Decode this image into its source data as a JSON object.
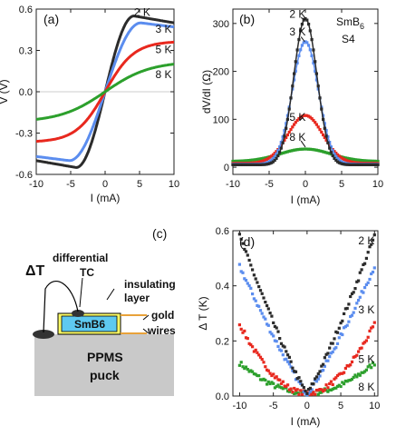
{
  "chart_data": [
    {
      "id": "a",
      "type": "line",
      "panel_label": "(a)",
      "xlabel": "I (mA)",
      "ylabel": "V (V)",
      "xlim": [
        -10,
        10
      ],
      "ylim": [
        -0.6,
        0.6
      ],
      "xticks": [
        -10,
        -5,
        0,
        5,
        10
      ],
      "yticks": [
        0.6,
        0.3,
        0.0,
        -0.3,
        -0.6
      ],
      "ytick_labels": [
        "0.6",
        "0.3",
        "0.0",
        "-0.3",
        "-0.6"
      ],
      "series": [
        {
          "name": "2 K",
          "color": "#2b2b2b",
          "peak": 0.55,
          "peak_at": 4.2,
          "end": 0.5
        },
        {
          "name": "3 K",
          "color": "#5b8def",
          "peak": 0.5,
          "peak_at": 5.2,
          "end": 0.47
        },
        {
          "name": "5 K",
          "color": "#e8281e",
          "peak": 0.36,
          "peak_at": 10,
          "end": 0.36
        },
        {
          "name": "8 K",
          "color": "#2ca02c",
          "peak": 0.2,
          "peak_at": 10,
          "end": 0.2
        }
      ],
      "annotations": [
        {
          "text": "2 K",
          "x": 4.2,
          "y": 0.55
        },
        {
          "text": "3 K",
          "x": 7.3,
          "y": 0.43
        },
        {
          "text": "5 K",
          "x": 7.3,
          "y": 0.28
        },
        {
          "text": "8 K",
          "x": 7.3,
          "y": 0.1
        }
      ]
    },
    {
      "id": "b",
      "type": "scatter",
      "panel_label": "(b)",
      "xlabel": "I (mA)",
      "ylabel": "dV/dI (Ω)",
      "xlim": [
        -10,
        10
      ],
      "ylim": [
        -15,
        330
      ],
      "xticks": [
        -10,
        -5,
        0,
        5,
        10
      ],
      "yticks": [
        0,
        100,
        200,
        300
      ],
      "sample_label": "SmB",
      "sample_sub": "6",
      "sample_id": "S4",
      "series": [
        {
          "name": "2 K",
          "color": "#2b2b2b",
          "peak": 310,
          "width": 1.6,
          "base": 5
        },
        {
          "name": "3 K",
          "color": "#5b8def",
          "peak": 262,
          "width": 1.8,
          "base": 6
        },
        {
          "name": "5 K",
          "color": "#e8281e",
          "peak": 108,
          "width": 2.4,
          "base": 8
        },
        {
          "name": "8 K",
          "color": "#2ca02c",
          "peak": 38,
          "width": 3.5,
          "base": 12
        }
      ],
      "annotations": [
        {
          "text": "2 K",
          "x": -2.2,
          "y": 312
        },
        {
          "text": "3 K",
          "x": -2.2,
          "y": 275
        },
        {
          "text": "5 K",
          "x": -2.2,
          "y": 97
        },
        {
          "text": "8 K",
          "x": -2.2,
          "y": 55
        }
      ]
    },
    {
      "id": "d",
      "type": "scatter",
      "panel_label": "(d)",
      "xlabel": "I (mA)",
      "ylabel": "Δ T (K)",
      "xlim": [
        -11,
        10.5
      ],
      "ylim": [
        0,
        0.6
      ],
      "xticks": [
        -10,
        -5,
        0,
        5,
        10
      ],
      "yticks": [
        0.0,
        0.2,
        0.4,
        0.6
      ],
      "ytick_labels": [
        "0.0",
        "0.2",
        "0.4",
        "0.6"
      ],
      "series": [
        {
          "name": "2 K",
          "color": "#2b2b2b",
          "end": 0.57
        },
        {
          "name": "3 K",
          "color": "#5b8def",
          "end": 0.46
        },
        {
          "name": "5 K",
          "color": "#e8281e",
          "end": 0.25
        },
        {
          "name": "8 K",
          "color": "#2ca02c",
          "end": 0.11
        }
      ],
      "annotations": [
        {
          "text": "2 K",
          "x": 7.6,
          "y": 0.55
        },
        {
          "text": "3 K",
          "x": 7.6,
          "y": 0.3
        },
        {
          "text": "5 K",
          "x": 7.6,
          "y": 0.12
        },
        {
          "text": "8 K",
          "x": 7.6,
          "y": 0.02
        }
      ]
    }
  ],
  "diagram_c": {
    "panel_label": "(c)",
    "differential_label": "differential",
    "tc_label": "TC",
    "delta_t_label": "ΔT",
    "insulating_label": "insulating",
    "layer_label": "layer",
    "sample_label": "SmB6",
    "gold_label": "gold",
    "wires_label": "wires",
    "puck_label_1": "PPMS",
    "puck_label_2": "puck",
    "colors": {
      "puck": "#c9c9c9",
      "sample": "#5ec9f0",
      "layer": "#ffff66",
      "wire": "#e8a23a"
    }
  }
}
